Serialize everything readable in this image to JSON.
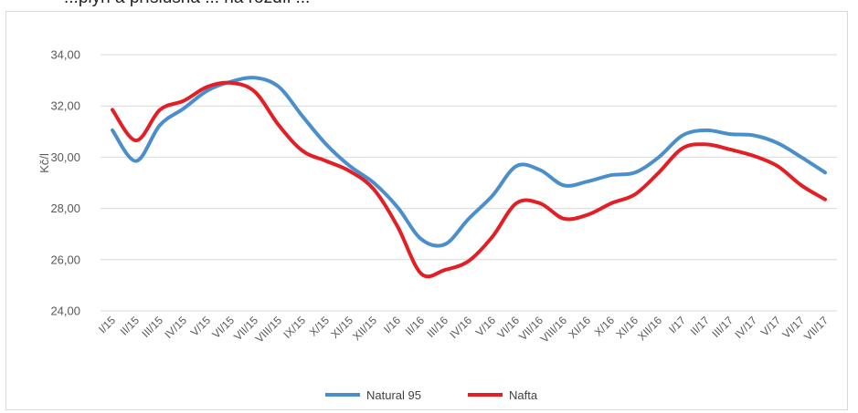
{
  "top_text": "...plyn a příslušná ... na rozdíl ...",
  "chart_data": {
    "type": "line",
    "ylabel": "Kč/l",
    "xlabel": "",
    "ylim": [
      24,
      34
    ],
    "yticks": [
      "24,00",
      "26,00",
      "28,00",
      "30,00",
      "32,00",
      "34,00"
    ],
    "grid": "horizontal",
    "legend_position": "bottom",
    "categories": [
      "I/15",
      "II/15",
      "III/15",
      "IV/15",
      "V/15",
      "VI/15",
      "VII/15",
      "VIII/15",
      "IX/15",
      "X/15",
      "XI/15",
      "XII/15",
      "I/16",
      "II/16",
      "III/16",
      "IV/16",
      "V/16",
      "VI/16",
      "VII/16",
      "VIII/16",
      "XI/16",
      "X/16",
      "XI/16",
      "XII/16",
      "I/17",
      "II/17",
      "III/17",
      "IV/17",
      "V/17",
      "VI/17",
      "VII/17"
    ],
    "series": [
      {
        "name": "Natural 95",
        "color": "#4a8fcb",
        "values": [
          31.05,
          29.85,
          31.25,
          31.9,
          32.6,
          32.95,
          33.1,
          32.75,
          31.6,
          30.5,
          29.65,
          29.0,
          28.05,
          26.8,
          26.6,
          27.6,
          28.5,
          29.65,
          29.5,
          28.9,
          29.05,
          29.3,
          29.4,
          30.0,
          30.85,
          31.05,
          30.9,
          30.85,
          30.55,
          30.0,
          29.4
        ]
      },
      {
        "name": "Nafta",
        "color": "#e31e24",
        "values": [
          31.85,
          30.65,
          31.85,
          32.2,
          32.75,
          32.9,
          32.55,
          31.25,
          30.25,
          29.85,
          29.45,
          28.75,
          27.3,
          25.45,
          25.6,
          25.95,
          26.9,
          28.2,
          28.2,
          27.6,
          27.75,
          28.2,
          28.55,
          29.4,
          30.35,
          30.5,
          30.3,
          30.05,
          29.65,
          28.9,
          28.35
        ]
      }
    ]
  }
}
